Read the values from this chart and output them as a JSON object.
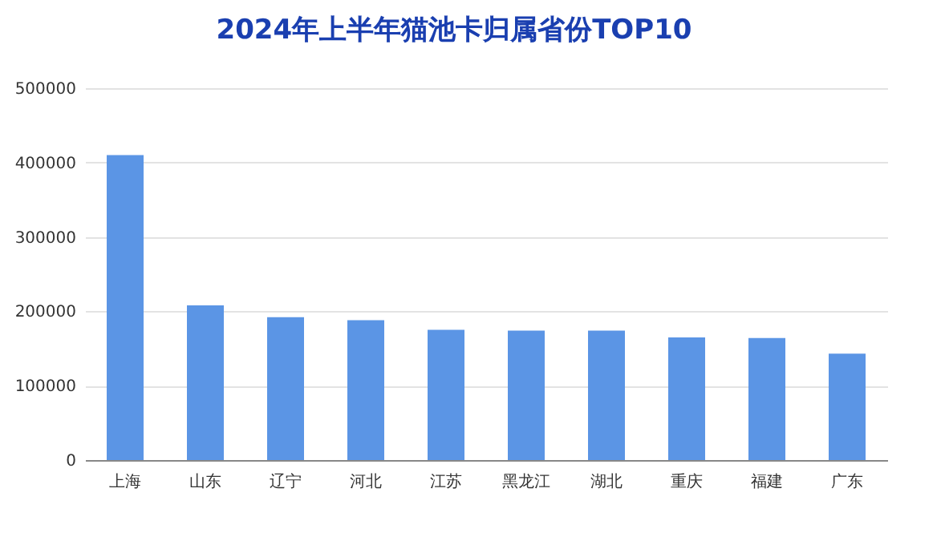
{
  "chart_data": {
    "type": "bar",
    "title": "2024年上半年猫池卡归属省份TOP10",
    "categories": [
      "上海",
      "山东",
      "辽宁",
      "河北",
      "江苏",
      "黑龙江",
      "湖北",
      "重庆",
      "福建",
      "广东"
    ],
    "values": [
      410000,
      208000,
      192000,
      188000,
      175000,
      174000,
      174000,
      165000,
      164000,
      143000
    ],
    "color": "#5b95e5",
    "ylim": [
      0,
      500000
    ],
    "yticks": [
      0,
      100000,
      200000,
      300000,
      400000,
      500000
    ],
    "grid": "y"
  }
}
